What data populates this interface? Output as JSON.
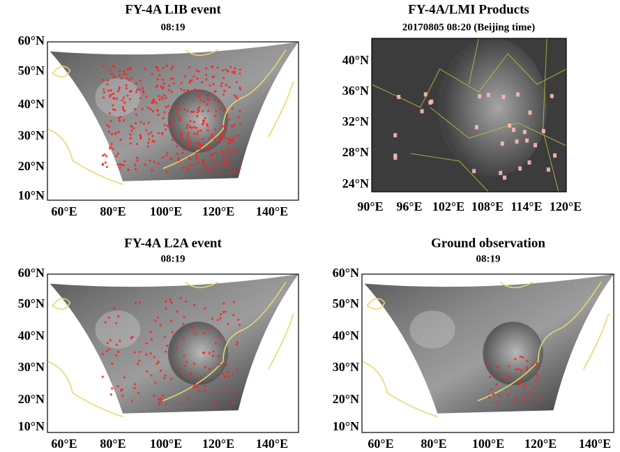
{
  "panels": [
    {
      "title": "FY-4A LIB event",
      "subtitle": "08:19",
      "yticks": [
        "60°N",
        "50°N",
        "40°N",
        "30°N",
        "20°N",
        "10°N"
      ],
      "xticks": [
        "60°E",
        "80°E",
        "100°E",
        "120°E",
        "140°E"
      ]
    },
    {
      "title": "FY-4A/LMI Products",
      "subtitle": "20170805 08:20 (Beijing time)",
      "yticks": [
        "40°N",
        "36°N",
        "32°N",
        "28°N",
        "24°N"
      ],
      "xticks": [
        "90°E",
        "96°E",
        "102°E",
        "108°E",
        "114°E",
        "120°E"
      ]
    },
    {
      "title": "FY-4A L2A event",
      "subtitle": "08:19",
      "yticks": [
        "60°N",
        "50°N",
        "40°N",
        "30°N",
        "20°N",
        "10°N"
      ],
      "xticks": [
        "60°E",
        "80°E",
        "100°E",
        "120°E",
        "140°E"
      ]
    },
    {
      "title": "Ground observation",
      "subtitle": "08:19",
      "yticks": [
        "60°N",
        "50°N",
        "40°N",
        "30°N",
        "20°N",
        "10°N"
      ],
      "xticks": [
        "60°E",
        "80°E",
        "100°E",
        "120°E",
        "140°E"
      ]
    }
  ]
}
